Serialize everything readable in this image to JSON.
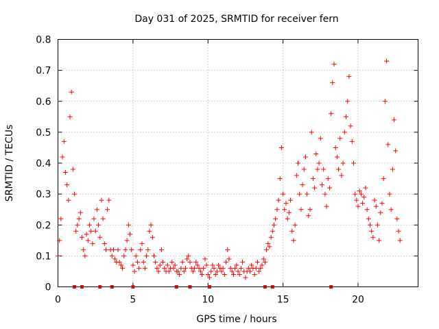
{
  "chart_data": {
    "type": "scatter",
    "title": "Day 031 of 2025, SRMTID for receiver fern",
    "xlabel": "GPS time / hours",
    "ylabel": "SRMTID / TECUs",
    "xlim": [
      0,
      24
    ],
    "ylim": [
      0,
      0.8
    ],
    "xticks": [
      0,
      5,
      10,
      15,
      20
    ],
    "xtick_labels": [
      "0",
      "5",
      "10",
      "15",
      "20"
    ],
    "yticks": [
      0,
      0.1,
      0.2,
      0.3,
      0.4,
      0.5,
      0.6,
      0.7,
      0.8
    ],
    "ytick_labels": [
      "0",
      "0.1",
      "0.2",
      "0.3",
      "0.4",
      "0.5",
      "0.6",
      "0.7",
      "0.8"
    ],
    "grid": true,
    "marker": "+",
    "series_color": "#ff0000",
    "series": [
      {
        "name": "SRMTID",
        "x": [
          0.0,
          0.1,
          0.2,
          0.3,
          0.4,
          0.5,
          0.6,
          0.7,
          0.8,
          0.9,
          1.0,
          1.1,
          1.2,
          1.3,
          1.4,
          1.5,
          1.6,
          1.7,
          1.8,
          1.9,
          2.0,
          2.1,
          2.2,
          2.3,
          2.4,
          2.5,
          2.6,
          2.7,
          2.8,
          2.9,
          3.0,
          3.1,
          3.2,
          3.3,
          3.4,
          3.5,
          3.6,
          3.7,
          3.8,
          3.9,
          4.0,
          4.1,
          4.2,
          4.3,
          4.4,
          4.5,
          4.6,
          4.7,
          4.8,
          4.9,
          5.0,
          5.1,
          5.2,
          5.3,
          5.4,
          5.5,
          5.6,
          5.7,
          5.8,
          5.9,
          6.0,
          6.1,
          6.2,
          6.3,
          6.4,
          6.5,
          6.6,
          6.7,
          6.8,
          6.9,
          7.0,
          7.1,
          7.2,
          7.3,
          7.4,
          7.5,
          7.6,
          7.7,
          7.8,
          7.9,
          8.0,
          8.1,
          8.2,
          8.3,
          8.4,
          8.5,
          8.6,
          8.7,
          8.8,
          8.9,
          9.0,
          9.1,
          9.2,
          9.3,
          9.4,
          9.5,
          9.6,
          9.7,
          9.8,
          9.9,
          10.0,
          10.1,
          10.2,
          10.3,
          10.4,
          10.5,
          10.6,
          10.7,
          10.8,
          10.9,
          11.0,
          11.1,
          11.2,
          11.3,
          11.4,
          11.5,
          11.6,
          11.7,
          11.8,
          11.9,
          12.0,
          12.1,
          12.2,
          12.3,
          12.4,
          12.5,
          12.6,
          12.7,
          12.8,
          12.9,
          13.0,
          13.1,
          13.2,
          13.3,
          13.4,
          13.5,
          13.6,
          13.7,
          13.8,
          13.9,
          14.0,
          14.1,
          14.2,
          14.3,
          14.4,
          14.5,
          14.6,
          14.7,
          14.8,
          14.9,
          15.0,
          15.1,
          15.2,
          15.3,
          15.4,
          15.5,
          15.6,
          15.7,
          15.8,
          15.9,
          16.0,
          16.1,
          16.2,
          16.3,
          16.4,
          16.5,
          16.6,
          16.7,
          16.8,
          16.9,
          17.0,
          17.1,
          17.2,
          17.3,
          17.4,
          17.5,
          17.6,
          17.7,
          17.8,
          17.9,
          18.0,
          18.1,
          18.2,
          18.3,
          18.4,
          18.5,
          18.6,
          18.7,
          18.8,
          18.9,
          19.0,
          19.1,
          19.2,
          19.3,
          19.4,
          19.5,
          19.6,
          19.7,
          19.8,
          19.9,
          20.0,
          20.1,
          20.2,
          20.3,
          20.4,
          20.5,
          20.6,
          20.7,
          20.8,
          20.9,
          21.0,
          21.1,
          21.2,
          21.3,
          21.4,
          21.5,
          21.6,
          21.7,
          21.8,
          21.9,
          22.0,
          22.1,
          22.2,
          22.3,
          22.4,
          22.5,
          22.6,
          22.7,
          22.8
        ],
        "y": [
          0.1,
          0.15,
          0.22,
          0.42,
          0.47,
          0.37,
          0.33,
          0.28,
          0.55,
          0.63,
          0.38,
          0.3,
          0.18,
          0.2,
          0.22,
          0.24,
          0.16,
          0.12,
          0.1,
          0.17,
          0.15,
          0.2,
          0.18,
          0.14,
          0.22,
          0.18,
          0.25,
          0.2,
          0.16,
          0.28,
          0.22,
          0.14,
          0.12,
          0.25,
          0.28,
          0.12,
          0.1,
          0.12,
          0.09,
          0.08,
          0.12,
          0.08,
          0.07,
          0.06,
          0.1,
          0.12,
          0.15,
          0.2,
          0.17,
          0.12,
          0.07,
          0.05,
          0.1,
          0.08,
          0.06,
          0.12,
          0.14,
          0.08,
          0.06,
          0.1,
          0.12,
          0.18,
          0.2,
          0.16,
          0.1,
          0.08,
          0.06,
          0.05,
          0.07,
          0.12,
          0.08,
          0.06,
          0.05,
          0.07,
          0.05,
          0.06,
          0.08,
          0.06,
          0.07,
          0.05,
          0.05,
          0.04,
          0.06,
          0.08,
          0.05,
          0.06,
          0.09,
          0.1,
          0.08,
          0.06,
          0.05,
          0.06,
          0.08,
          0.07,
          0.06,
          0.05,
          0.04,
          0.06,
          0.09,
          0.07,
          0.04,
          0.03,
          0.05,
          0.07,
          0.06,
          0.04,
          0.05,
          0.07,
          0.06,
          0.05,
          0.06,
          0.04,
          0.08,
          0.12,
          0.09,
          0.06,
          0.05,
          0.04,
          0.06,
          0.07,
          0.05,
          0.04,
          0.06,
          0.08,
          0.05,
          0.03,
          0.05,
          0.06,
          0.05,
          0.07,
          0.06,
          0.04,
          0.06,
          0.08,
          0.05,
          0.06,
          0.07,
          0.09,
          0.08,
          0.12,
          0.14,
          0.13,
          0.16,
          0.18,
          0.2,
          0.22,
          0.25,
          0.28,
          0.35,
          0.45,
          0.3,
          0.25,
          0.27,
          0.22,
          0.24,
          0.28,
          0.18,
          0.15,
          0.2,
          0.36,
          0.4,
          0.3,
          0.25,
          0.33,
          0.38,
          0.42,
          0.3,
          0.23,
          0.25,
          0.5,
          0.35,
          0.32,
          0.43,
          0.38,
          0.4,
          0.48,
          0.33,
          0.38,
          0.3,
          0.26,
          0.35,
          0.32,
          0.56,
          0.66,
          0.72,
          0.45,
          0.42,
          0.38,
          0.48,
          0.36,
          0.4,
          0.5,
          0.55,
          0.6,
          0.68,
          0.52,
          0.47,
          0.4,
          0.3,
          0.28,
          0.26,
          0.31,
          0.3,
          0.27,
          0.29,
          0.32,
          0.25,
          0.22,
          0.2,
          0.18,
          0.16,
          0.28,
          0.26,
          0.2,
          0.15,
          0.24,
          0.27,
          0.35,
          0.6,
          0.73,
          0.46,
          0.3,
          0.25,
          0.38,
          0.54,
          0.44,
          0.22,
          0.18,
          0.15
        ]
      }
    ],
    "zero_markers_x": [
      1.1,
      1.6,
      2.8,
      3.6,
      5.0,
      7.9,
      8.8,
      10.1,
      13.8,
      14.3,
      18.2
    ]
  }
}
